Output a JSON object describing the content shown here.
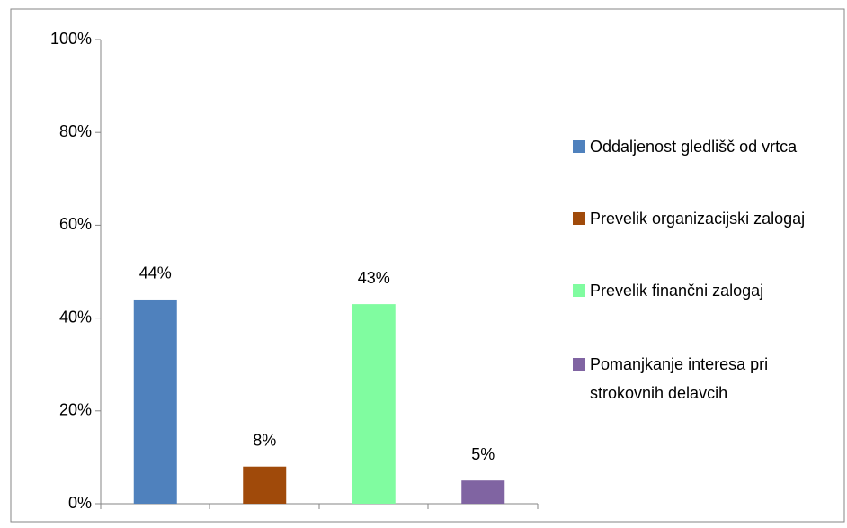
{
  "chart_data": {
    "type": "bar",
    "categories": [
      null
    ],
    "series": [
      {
        "name": "Oddaljenost gledlišč od vrtca",
        "color": "#4f81bd",
        "values": [
          44
        ],
        "value_labels": [
          "44%"
        ]
      },
      {
        "name": "Prevelik organizacijski zalogaj",
        "color": "#a04a0a",
        "values": [
          8
        ],
        "value_labels": [
          "8%"
        ]
      },
      {
        "name": "Prevelik finančni zalogaj",
        "color": "#80fca0",
        "values": [
          43
        ],
        "value_labels": [
          "43%"
        ]
      },
      {
        "name": "Pomanjkanje interesa pri strokovnih delavcih",
        "color": "#8064a2",
        "values": [
          5
        ],
        "value_labels": [
          "5%"
        ]
      }
    ],
    "ylim": [
      0,
      100
    ],
    "yticks": [
      {
        "value": 0,
        "label": "0%"
      },
      {
        "value": 20,
        "label": "20%"
      },
      {
        "value": 40,
        "label": "40%"
      },
      {
        "value": 60,
        "label": "60%"
      },
      {
        "value": 80,
        "label": "80%"
      },
      {
        "value": 100,
        "label": "100%"
      }
    ],
    "legend": "right"
  }
}
